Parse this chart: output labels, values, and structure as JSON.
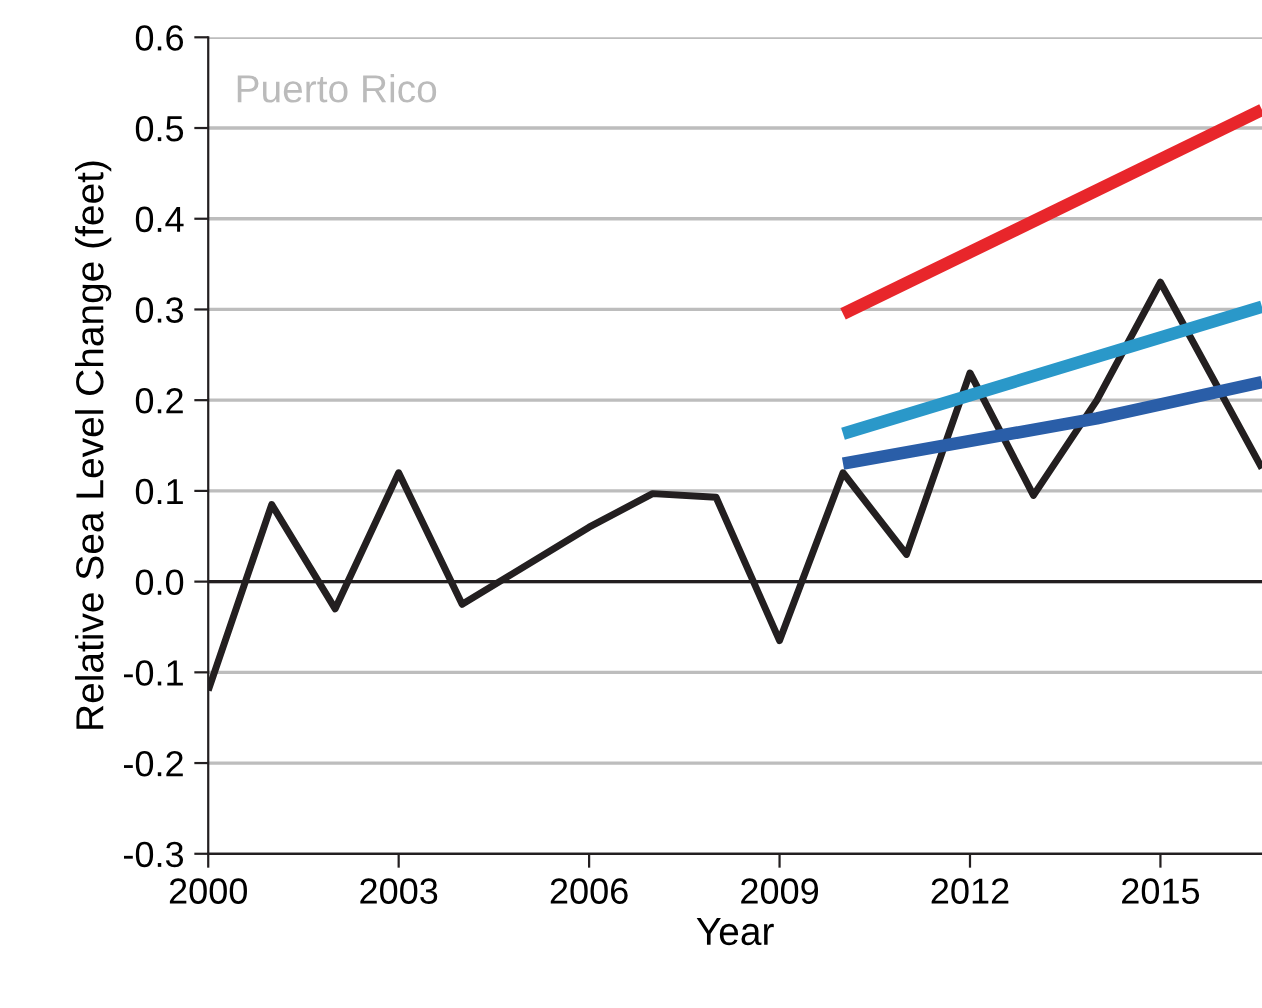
{
  "chart_data": {
    "type": "line",
    "xlabel": "Year",
    "ylabel": "Relative Sea Level Change (feet)",
    "annotations": [
      "Puerto Rico"
    ],
    "xlim": [
      2000,
      2016.6
    ],
    "xticks": [
      2000,
      2003,
      2006,
      2009,
      2012,
      2015
    ],
    "ylim": [
      -0.3,
      0.6
    ],
    "yticks": [
      -0.3,
      -0.2,
      -0.1,
      {
        "value": 0,
        "label": "0.0"
      },
      0.1,
      0.2,
      0.3,
      0.4,
      0.5,
      0.6
    ],
    "grid": "y",
    "legend": false,
    "marker": "none",
    "line_style": "solid",
    "ref_lines": [
      {
        "axis": "y",
        "value": 0,
        "color": "#231f20"
      }
    ],
    "series": [
      {
        "color": "#231f20",
        "x": [
          2000,
          2001,
          2002,
          2003,
          2004,
          2006,
          2007,
          2008,
          2009,
          2010,
          2011,
          2012,
          2013,
          2014,
          2015,
          2016.6
        ],
        "values": [
          -0.12,
          0.085,
          -0.03,
          0.12,
          -0.025,
          0.06,
          0.097,
          0.093,
          -0.065,
          0.12,
          0.03,
          0.23,
          0.095,
          0.2,
          0.33,
          0.125
        ]
      },
      {
        "color": "#e8262b",
        "x": [
          2010,
          2016.6
        ],
        "values": [
          0.295,
          0.52
        ]
      },
      {
        "color": "#2a98c9",
        "x": [
          2010,
          2016.6
        ],
        "values": [
          0.163,
          0.303
        ]
      },
      {
        "color": "#2a5ea8",
        "x": [
          2010,
          2014,
          2016.6
        ],
        "values": [
          0.13,
          0.18,
          0.22
        ]
      }
    ]
  }
}
